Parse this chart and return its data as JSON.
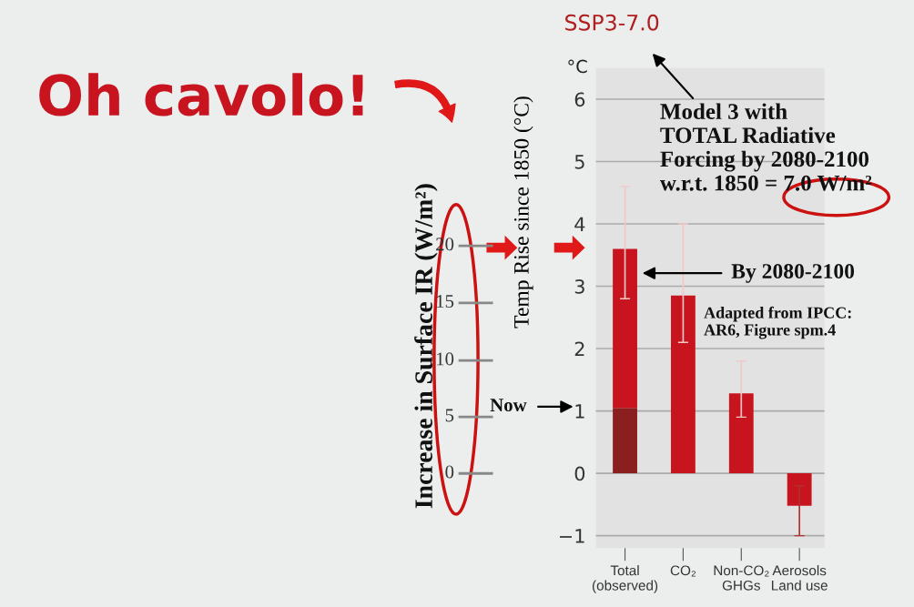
{
  "chart_data": {
    "type": "bar",
    "title": "Oh cavolo!",
    "subtitle": "SSP3-7.0",
    "ylabel": "Temp Rise since 1850 (°C)",
    "categories": [
      "Total\n(observed)",
      "CO₂",
      "Non-CO₂\nGHGs",
      "Aerosols\nLand use"
    ],
    "stacked": true,
    "series": [
      {
        "color": "#8b1e1e",
        "values": [
          1.05,
          null,
          null,
          null
        ]
      },
      {
        "color": "#c8141e",
        "values": [
          2.55,
          2.85,
          1.28,
          -0.52
        ],
        "errors": [
          [
            2.8,
            4.6
          ],
          [
            2.1,
            4.0
          ],
          [
            0.9,
            1.8
          ],
          [
            -1.0,
            -0.2
          ]
        ]
      }
    ],
    "ylim": [
      -1.2,
      6.5
    ],
    "yticks": [
      {
        "value": -1,
        "label": "−1"
      },
      0,
      1,
      2,
      3,
      4,
      5,
      6
    ],
    "grid": "y",
    "annotations": [
      "°C",
      "Model 3 with\nTOTAL Radiative\nForcing by 2080-2100\nw.r.t. 1850 = 7.0 W/m²",
      "By 2080-2100",
      "Now",
      "Adapted from IPCC:\nAR6, Figure spm.4",
      "Increase in Surface IR (W/m²)",
      "20",
      "15",
      "10",
      "5",
      "0"
    ]
  }
}
